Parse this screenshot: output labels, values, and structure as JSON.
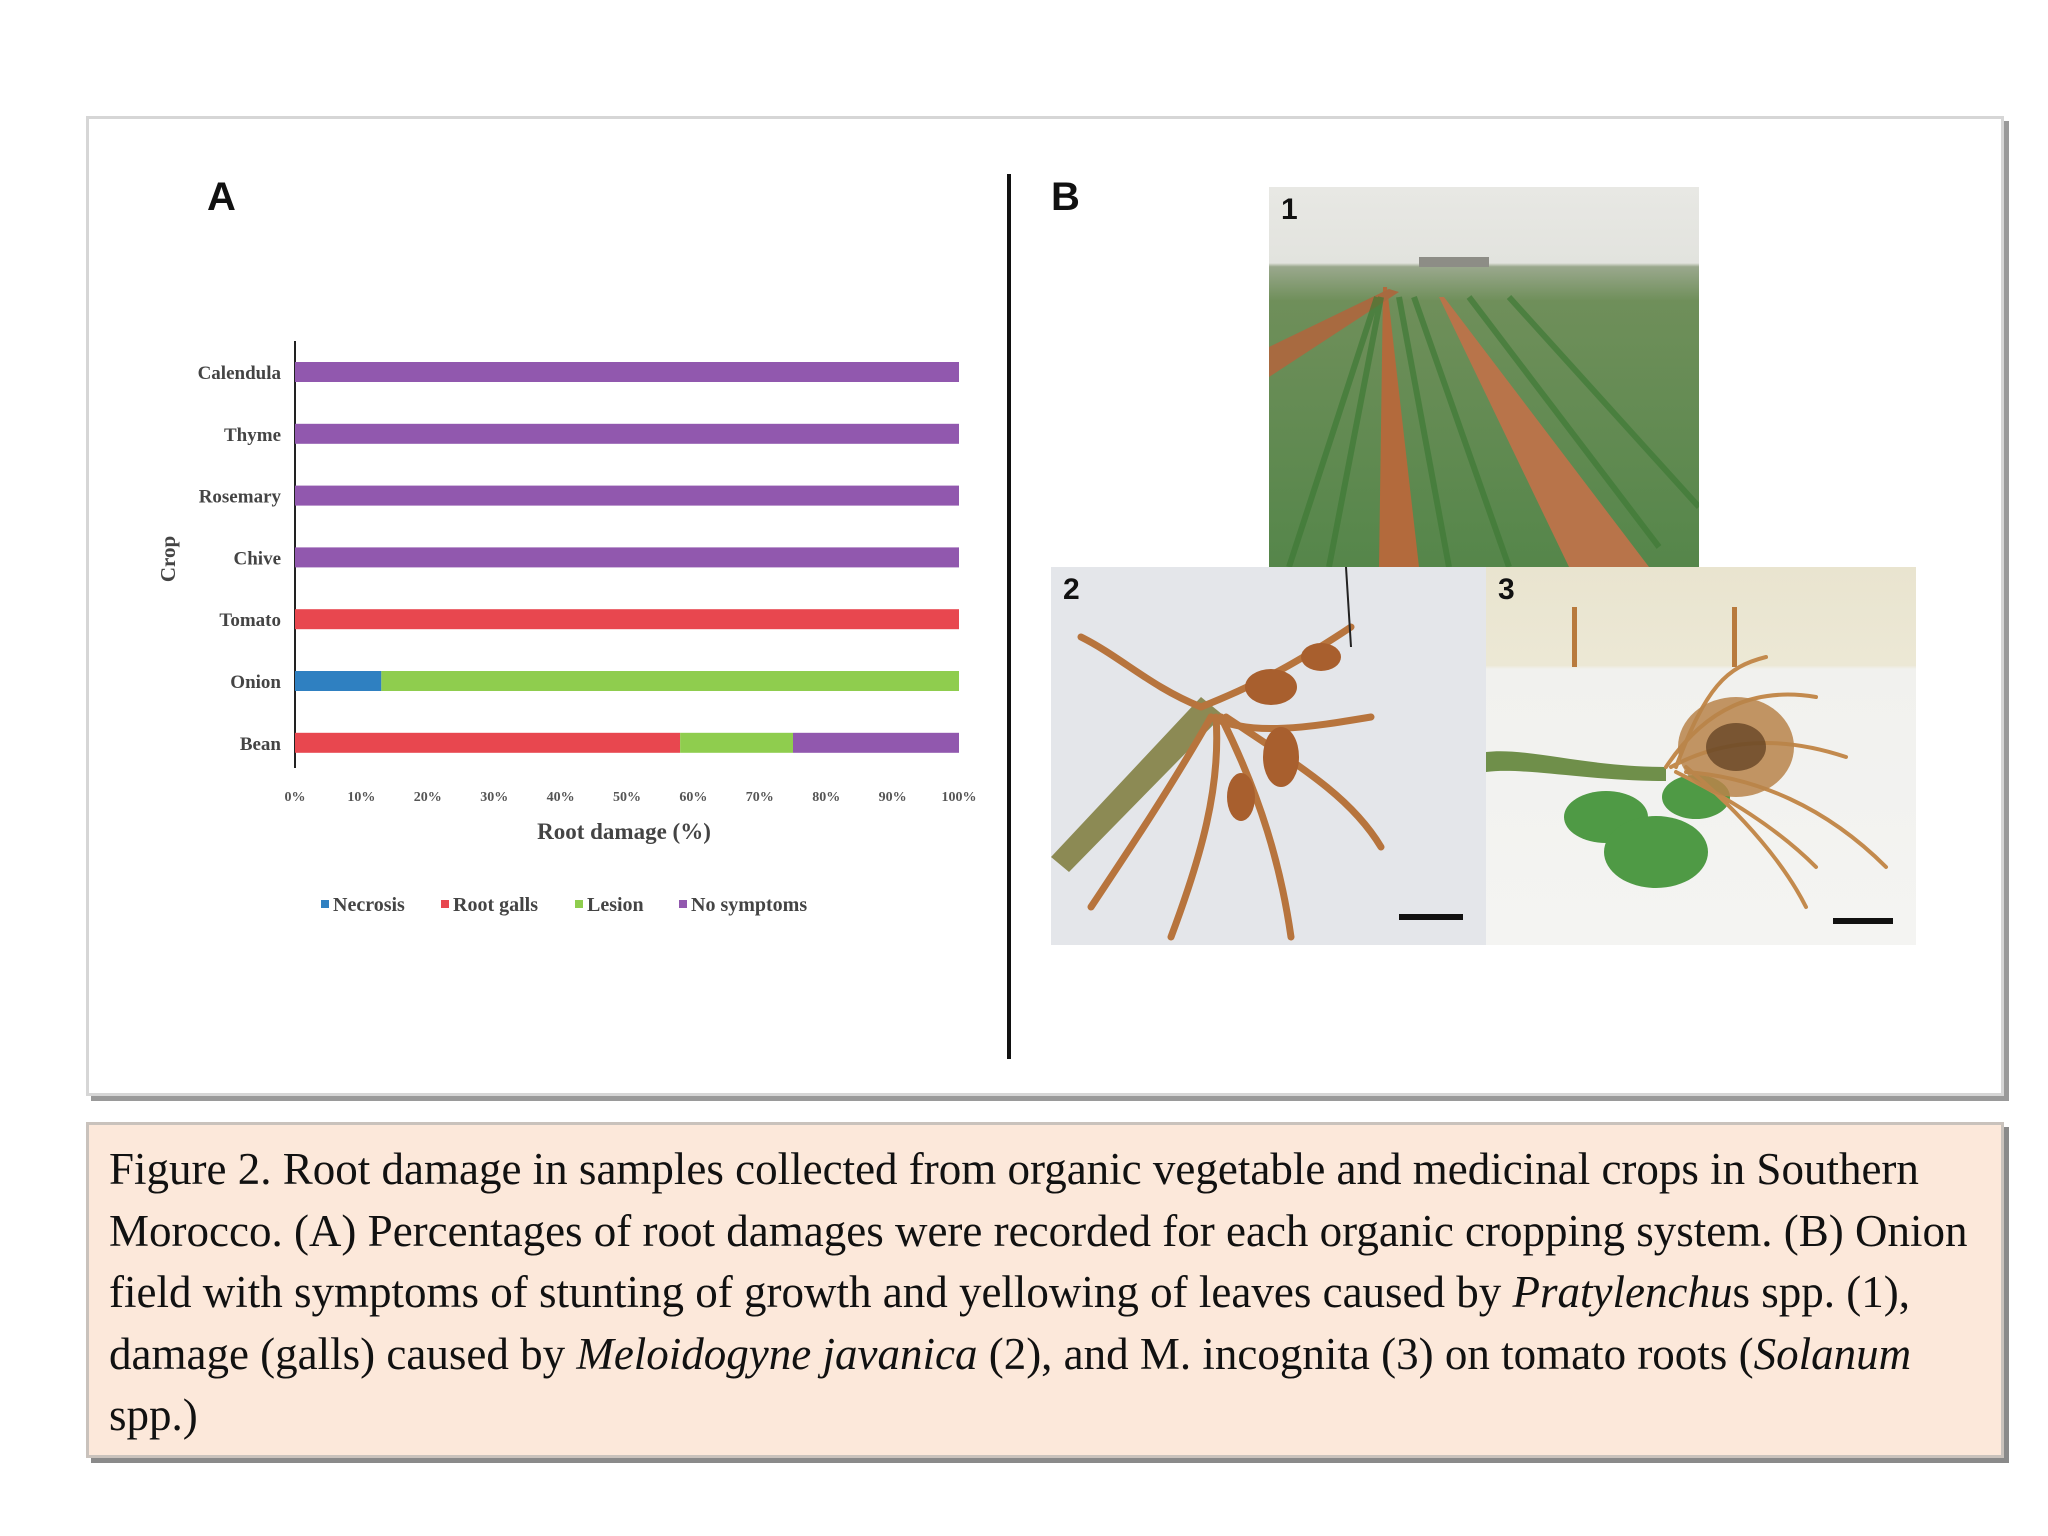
{
  "panels": {
    "a_letter": "A",
    "b_letter": "B"
  },
  "chart_data": {
    "type": "bar",
    "stacked": true,
    "orientation": "horizontal",
    "title": "",
    "xlabel": "Root damage (%)",
    "ylabel": "Crop",
    "xlim": [
      0,
      100
    ],
    "x_ticks": [
      "0%",
      "10%",
      "20%",
      "30%",
      "40%",
      "50%",
      "60%",
      "70%",
      "80%",
      "90%",
      "100%"
    ],
    "categories": [
      "Calendula",
      "Thyme",
      "Rosemary",
      "Chive",
      "Tomato",
      "Onion",
      "Bean"
    ],
    "series": [
      {
        "name": "Necrosis",
        "color": "#2f80c1",
        "values": [
          0,
          0,
          0,
          0,
          0,
          13,
          0
        ]
      },
      {
        "name": "Root galls",
        "color": "#e8474f",
        "values": [
          0,
          0,
          0,
          0,
          100,
          0,
          58
        ]
      },
      {
        "name": "Lesion",
        "color": "#8fcd4e",
        "values": [
          0,
          0,
          0,
          0,
          0,
          87,
          17
        ]
      },
      {
        "name": "No symptoms",
        "color": "#9158ae",
        "values": [
          100,
          100,
          100,
          100,
          0,
          0,
          25
        ]
      }
    ],
    "legend_position": "bottom",
    "grid": false
  },
  "photos": [
    {
      "number": "1",
      "subject": "onion-field"
    },
    {
      "number": "2",
      "subject": "bean-roots-galls"
    },
    {
      "number": "3",
      "subject": "tomato-roots"
    }
  ],
  "caption": {
    "p1": "Figure 2. Root damage in samples collected from organic vegetable and medicinal crops in Southern Morocco. (A) Percentages of root damages were recorded for each organic cropping system. (B) Onion field with symptoms of stunting of growth and yellowing of leaves caused by ",
    "i1": "Pratylenchu",
    "p2": "s spp. (1), damage (galls) caused by ",
    "i2": "Meloidogyne javanica",
    "p3": " (2), and M. incognita (3) on tomato roots (",
    "i3": "Solanum",
    "p4": " spp.)"
  }
}
